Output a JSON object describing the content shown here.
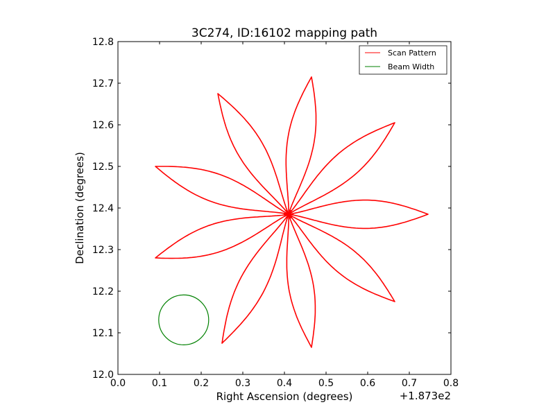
{
  "chart_data": {
    "type": "line",
    "title": "3C274, ID:16102 mapping path",
    "xlabel": "Right Ascension (degrees)",
    "ylabel": "Declination (degrees)",
    "x_offset_label": "+1.873e2",
    "xlim": [
      0.0,
      0.8
    ],
    "ylim": [
      12.0,
      12.8
    ],
    "xticks": [
      "0.0",
      "0.1",
      "0.2",
      "0.3",
      "0.4",
      "0.5",
      "0.6",
      "0.7",
      "0.8"
    ],
    "yticks": [
      "12.0",
      "12.1",
      "12.2",
      "12.3",
      "12.4",
      "12.5",
      "12.6",
      "12.7",
      "12.8"
    ],
    "grid": false,
    "legend_position": "top-right",
    "series": [
      {
        "name": "Scan Pattern",
        "color": "#ff0000",
        "kind": "petal-scan",
        "center": [
          0.41,
          12.385
        ],
        "petals": [
          {
            "tip": [
              0.465,
              12.715
            ],
            "width": 0.03
          },
          {
            "tip": [
              0.665,
              12.605
            ],
            "width": 0.03
          },
          {
            "tip": [
              0.745,
              12.385
            ],
            "width": 0.032
          },
          {
            "tip": [
              0.665,
              12.175
            ],
            "width": 0.03
          },
          {
            "tip": [
              0.465,
              12.065
            ],
            "width": 0.028
          },
          {
            "tip": [
              0.25,
              12.075
            ],
            "width": 0.03
          },
          {
            "tip": [
              0.09,
              12.28
            ],
            "width": 0.032
          },
          {
            "tip": [
              0.09,
              12.5
            ],
            "width": 0.032
          },
          {
            "tip": [
              0.24,
              12.675
            ],
            "width": 0.03
          }
        ]
      },
      {
        "name": "Beam Width",
        "color": "#008000",
        "kind": "circle",
        "center": [
          0.158,
          12.131
        ],
        "radius": 0.06
      }
    ]
  }
}
